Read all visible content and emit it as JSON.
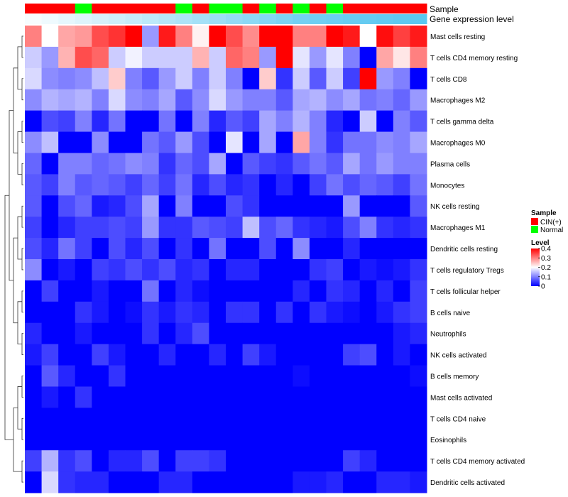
{
  "chart_data": {
    "type": "heatmap",
    "annotation_rows": {
      "sample_label": "Sample",
      "expression_label": "Gene expression level"
    },
    "samples": [
      "CIN(+)",
      "CIN(+)",
      "CIN(+)",
      "Normal",
      "CIN(+)",
      "CIN(+)",
      "CIN(+)",
      "CIN(+)",
      "CIN(+)",
      "Normal",
      "CIN(+)",
      "Normal",
      "Normal",
      "CIN(+)",
      "Normal",
      "CIN(+)",
      "Normal",
      "CIN(+)",
      "Normal",
      "CIN(+)",
      "CIN(+)",
      "CIN(+)",
      "CIN(+)",
      "CIN(+)"
    ],
    "expression_levels": [
      0.05,
      0.1,
      0.15,
      0.2,
      0.25,
      0.3,
      0.35,
      0.4,
      0.45,
      0.5,
      0.55,
      0.6,
      0.65,
      0.7,
      0.75,
      0.8,
      0.85,
      0.88,
      0.9,
      0.92,
      0.94,
      0.96,
      0.98,
      1.0
    ],
    "rows": [
      "Mast cells resting",
      "T cells CD4 memory resting",
      "T cells CD8",
      "Macrophages M2",
      "T cells gamma delta",
      "Macrophages M0",
      "Plasma cells",
      "Monocytes",
      "NK cells resting",
      "Macrophages M1",
      "Dendritic cells resting",
      "T cells regulatory  Tregs",
      "T cells follicular helper",
      "B cells naive",
      "Neutrophils",
      "NK cells activated",
      "B cells memory",
      "Mast cells activated",
      "T cells CD4 naive",
      "Eosinophils",
      "T cells CD4 memory activated",
      "Dendritic cells activated"
    ],
    "values": [
      [
        0.3,
        0.2,
        0.27,
        0.28,
        0.34,
        0.36,
        0.4,
        0.12,
        0.38,
        0.3,
        0.21,
        0.4,
        0.34,
        0.29,
        0.4,
        0.4,
        0.3,
        0.3,
        0.4,
        0.38,
        0.2,
        0.39,
        0.35,
        0.38
      ],
      [
        0.16,
        0.12,
        0.26,
        0.34,
        0.32,
        0.16,
        0.19,
        0.16,
        0.16,
        0.16,
        0.26,
        0.16,
        0.32,
        0.3,
        0.12,
        0.4,
        0.18,
        0.12,
        0.18,
        0.1,
        0.0,
        0.27,
        0.22,
        0.3
      ],
      [
        0.17,
        0.11,
        0.1,
        0.11,
        0.15,
        0.24,
        0.1,
        0.07,
        0.12,
        0.16,
        0.1,
        0.16,
        0.1,
        0.0,
        0.24,
        0.04,
        0.16,
        0.07,
        0.16,
        0.05,
        0.4,
        0.12,
        0.1,
        0.0
      ],
      [
        0.11,
        0.14,
        0.13,
        0.14,
        0.1,
        0.17,
        0.11,
        0.1,
        0.13,
        0.07,
        0.11,
        0.17,
        0.12,
        0.1,
        0.1,
        0.07,
        0.13,
        0.14,
        0.11,
        0.13,
        0.09,
        0.1,
        0.08,
        0.12
      ],
      [
        0.0,
        0.06,
        0.05,
        0.1,
        0.03,
        0.09,
        0.0,
        0.0,
        0.09,
        0.0,
        0.1,
        0.03,
        0.07,
        0.05,
        0.13,
        0.1,
        0.14,
        0.1,
        0.03,
        0.0,
        0.16,
        0.0,
        0.1,
        0.07
      ],
      [
        0.11,
        0.15,
        0.0,
        0.0,
        0.11,
        0.0,
        0.0,
        0.09,
        0.07,
        0.12,
        0.06,
        0.0,
        0.18,
        0.0,
        0.13,
        0.0,
        0.27,
        0.1,
        0.04,
        0.09,
        0.09,
        0.11,
        0.1,
        0.13
      ],
      [
        0.08,
        0.0,
        0.1,
        0.1,
        0.08,
        0.09,
        0.11,
        0.1,
        0.04,
        0.08,
        0.06,
        0.13,
        0.0,
        0.07,
        0.05,
        0.04,
        0.07,
        0.09,
        0.07,
        0.13,
        0.09,
        0.12,
        0.1,
        0.1
      ],
      [
        0.07,
        0.05,
        0.1,
        0.07,
        0.08,
        0.07,
        0.05,
        0.08,
        0.05,
        0.09,
        0.03,
        0.06,
        0.03,
        0.04,
        0.0,
        0.03,
        0.0,
        0.05,
        0.09,
        0.06,
        0.08,
        0.07,
        0.05,
        0.09
      ],
      [
        0.07,
        0.0,
        0.06,
        0.08,
        0.02,
        0.03,
        0.06,
        0.13,
        0.0,
        0.1,
        0.0,
        0.0,
        0.06,
        0.04,
        0.0,
        0.0,
        0.0,
        0.0,
        0.0,
        0.12,
        0.0,
        0.0,
        0.0,
        0.07
      ],
      [
        0.05,
        0.0,
        0.03,
        0.05,
        0.05,
        0.06,
        0.05,
        0.12,
        0.04,
        0.04,
        0.07,
        0.06,
        0.05,
        0.15,
        0.06,
        0.08,
        0.04,
        0.03,
        0.02,
        0.06,
        0.1,
        0.04,
        0.03,
        0.04
      ],
      [
        0.06,
        0.03,
        0.09,
        0.05,
        0.0,
        0.06,
        0.03,
        0.06,
        0.0,
        0.04,
        0.0,
        0.09,
        0.0,
        0.0,
        0.06,
        0.0,
        0.11,
        0.0,
        0.0,
        0.03,
        0.0,
        0.0,
        0.0,
        0.0
      ],
      [
        0.11,
        0.0,
        0.02,
        0.0,
        0.05,
        0.04,
        0.06,
        0.04,
        0.06,
        0.03,
        0.04,
        0.0,
        0.03,
        0.03,
        0.0,
        0.0,
        0.0,
        0.04,
        0.05,
        0.0,
        0.02,
        0.01,
        0.02,
        0.04
      ],
      [
        0.0,
        0.05,
        0.0,
        0.0,
        0.02,
        0.0,
        0.0,
        0.09,
        0.0,
        0.03,
        0.01,
        0.0,
        0.0,
        0.0,
        0.0,
        0.0,
        0.03,
        0.0,
        0.04,
        0.03,
        0.0,
        0.03,
        0.0,
        0.05
      ],
      [
        0.0,
        0.0,
        0.0,
        0.04,
        0.02,
        0.0,
        0.01,
        0.04,
        0.02,
        0.04,
        0.03,
        0.0,
        0.04,
        0.04,
        0.0,
        0.04,
        0.0,
        0.04,
        0.02,
        0.01,
        0.0,
        0.02,
        0.04,
        0.05
      ],
      [
        0.03,
        0.0,
        0.0,
        0.02,
        0.0,
        0.0,
        0.0,
        0.04,
        0.0,
        0.03,
        0.06,
        0.0,
        0.0,
        0.0,
        0.0,
        0.0,
        0.0,
        0.0,
        0.0,
        0.0,
        0.0,
        0.0,
        0.02,
        0.03
      ],
      [
        0.02,
        0.05,
        0.0,
        0.0,
        0.05,
        0.02,
        0.0,
        0.0,
        0.03,
        0.0,
        0.0,
        0.03,
        0.0,
        0.05,
        0.02,
        0.0,
        0.0,
        0.0,
        0.0,
        0.05,
        0.06,
        0.0,
        0.02,
        0.0
      ],
      [
        0.0,
        0.07,
        0.03,
        0.0,
        0.0,
        0.04,
        0.0,
        0.0,
        0.0,
        0.0,
        0.0,
        0.0,
        0.0,
        0.0,
        0.0,
        0.0,
        0.01,
        0.0,
        0.0,
        0.0,
        0.0,
        0.0,
        0.0,
        0.01
      ],
      [
        0.0,
        0.02,
        0.0,
        0.04,
        0.0,
        0.0,
        0.0,
        0.0,
        0.0,
        0.0,
        0.0,
        0.0,
        0.0,
        0.0,
        0.0,
        0.0,
        0.0,
        0.0,
        0.0,
        0.0,
        0.0,
        0.0,
        0.0,
        0.0
      ],
      [
        0.0,
        0.0,
        0.0,
        0.0,
        0.0,
        0.0,
        0.0,
        0.0,
        0.0,
        0.0,
        0.0,
        0.0,
        0.0,
        0.0,
        0.0,
        0.0,
        0.0,
        0.0,
        0.0,
        0.0,
        0.0,
        0.0,
        0.0,
        0.0
      ],
      [
        0.0,
        0.0,
        0.0,
        0.0,
        0.0,
        0.0,
        0.0,
        0.0,
        0.0,
        0.0,
        0.0,
        0.0,
        0.0,
        0.0,
        0.0,
        0.0,
        0.0,
        0.0,
        0.0,
        0.0,
        0.0,
        0.0,
        0.0,
        0.0
      ],
      [
        0.05,
        0.14,
        0.04,
        0.06,
        0.0,
        0.03,
        0.03,
        0.06,
        0.0,
        0.05,
        0.05,
        0.04,
        0.0,
        0.0,
        0.0,
        0.0,
        0.0,
        0.0,
        0.0,
        0.05,
        0.03,
        0.0,
        0.0,
        0.0
      ],
      [
        0.0,
        0.17,
        0.04,
        0.03,
        0.03,
        0.0,
        0.0,
        0.0,
        0.03,
        0.03,
        0.0,
        0.0,
        0.0,
        0.0,
        0.0,
        0.0,
        0.02,
        0.02,
        0.03,
        0.0,
        0.0,
        0.03,
        0.03,
        0.02
      ]
    ],
    "legend": {
      "sample_title": "Sample",
      "sample_entries": [
        {
          "label": "CIN(+)",
          "color": "#ff0000"
        },
        {
          "label": "Normal",
          "color": "#00ff00"
        }
      ],
      "level_title": "Level",
      "level_ticks": [
        "0.4",
        "0.3",
        "0.2",
        "0.1",
        "0"
      ],
      "level_range": [
        0,
        0.4
      ]
    },
    "colors": {
      "low": "#0000ff",
      "mid": "#ffffff",
      "high": "#ff0000",
      "expression_low": "#ffffff",
      "expression_high": "#5bc8f0"
    }
  }
}
